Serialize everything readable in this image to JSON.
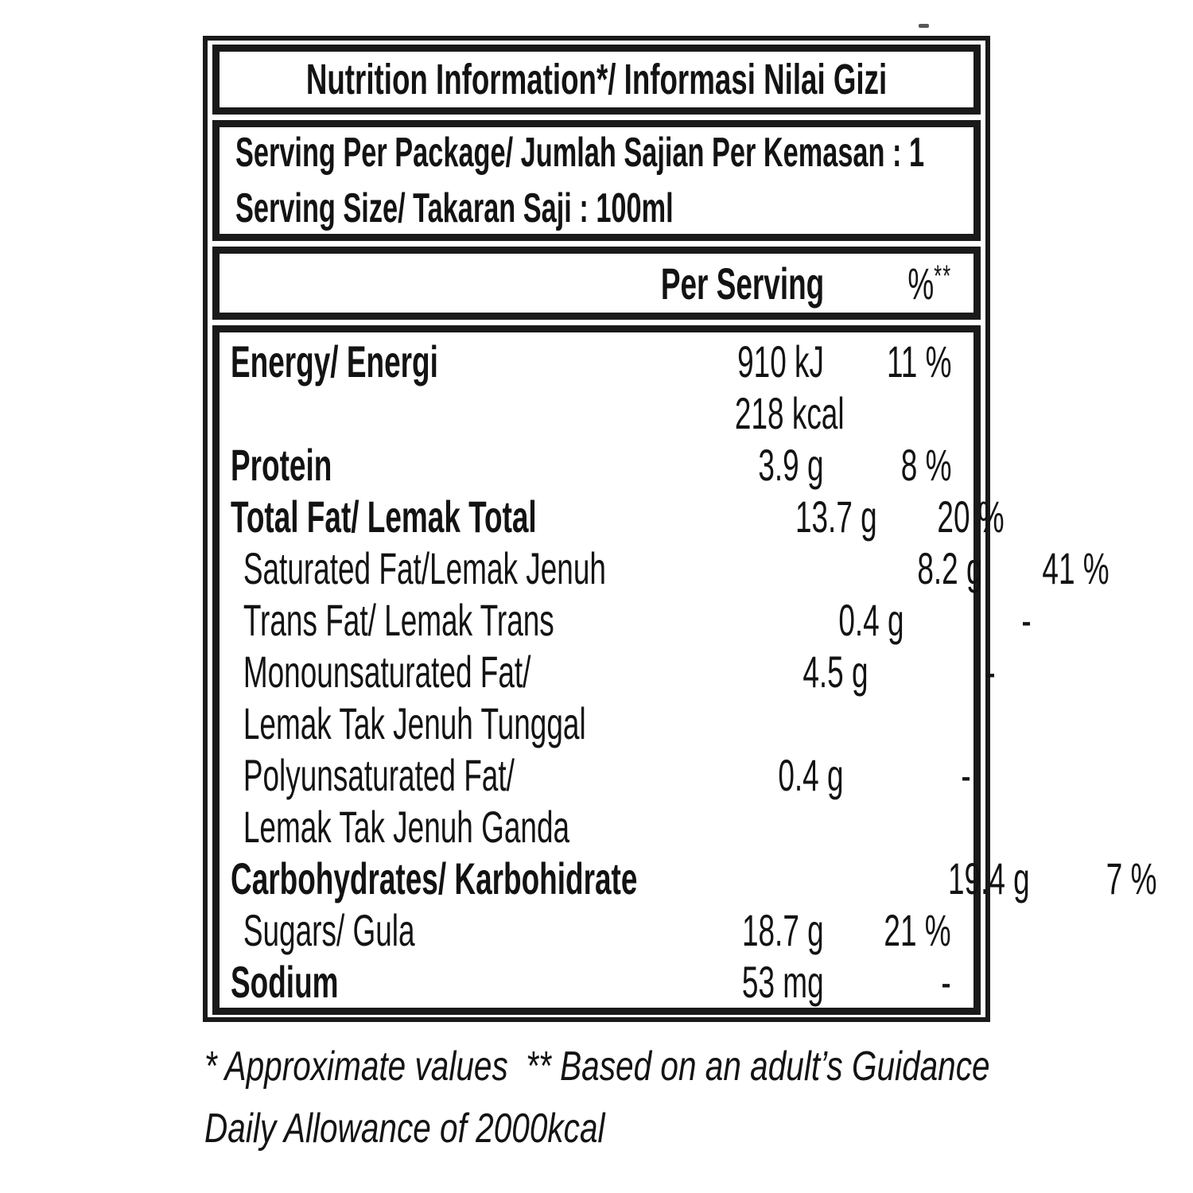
{
  "document": {
    "title": "Nutrition Information*/ Informasi Nilai Gizi",
    "serving_lines": [
      "Serving Per Package/ Jumlah Sajian Per Kemasan : 1",
      "Serving Size/ Takaran Saji : 100ml"
    ]
  },
  "table": {
    "columns": {
      "per_serving": "Per Serving",
      "pct_symbol": "%",
      "pct_marker": "**"
    },
    "rows": [
      {
        "label": "Energy/ Energi",
        "value": "910 kJ",
        "pct": "11 %",
        "bold": true,
        "indent": false
      },
      {
        "label": "",
        "value": "218 kcal",
        "pct": "",
        "bold": false,
        "indent": false,
        "value_nudge": true
      },
      {
        "label": "Protein",
        "value": "3.9 g",
        "pct": "8 %",
        "bold": true,
        "indent": false
      },
      {
        "label": "Total Fat/ Lemak Total",
        "value": "13.7 g",
        "pct": "20 %",
        "bold": true,
        "indent": false
      },
      {
        "label": "Saturated Fat/Lemak Jenuh",
        "value": "8.2 g",
        "pct": "41 %",
        "bold": false,
        "indent": true
      },
      {
        "label": "Trans Fat/ Lemak Trans",
        "value": "0.4 g",
        "pct": "-",
        "bold": false,
        "indent": true
      },
      {
        "label": "Monounsaturated Fat/",
        "value": "4.5 g",
        "pct": "-",
        "bold": false,
        "indent": true
      },
      {
        "label": "Lemak Tak Jenuh Tunggal",
        "value": "",
        "pct": "",
        "bold": false,
        "indent": true
      },
      {
        "label": "Polyunsaturated Fat/",
        "value": "0.4 g",
        "pct": "-",
        "bold": false,
        "indent": true
      },
      {
        "label": "Lemak Tak Jenuh Ganda",
        "value": "",
        "pct": "",
        "bold": false,
        "indent": true
      },
      {
        "label": "Carbohydrates/ Karbohidrate",
        "value": "19.4 g",
        "pct": "7 %",
        "bold": true,
        "indent": false
      },
      {
        "label": "Sugars/ Gula",
        "value": "18.7 g",
        "pct": "21 %",
        "bold": false,
        "indent": true
      },
      {
        "label": "Sodium",
        "value": "53 mg",
        "pct": "-",
        "bold": true,
        "indent": false
      }
    ]
  },
  "footnote": {
    "line1": "* Approximate values  ** Based on an adult’s Guidance",
    "line2": "Daily Allowance of 2000kcal"
  },
  "colors": {
    "text": "#131313",
    "border": "#1a1a1a",
    "background": "#ffffff"
  }
}
